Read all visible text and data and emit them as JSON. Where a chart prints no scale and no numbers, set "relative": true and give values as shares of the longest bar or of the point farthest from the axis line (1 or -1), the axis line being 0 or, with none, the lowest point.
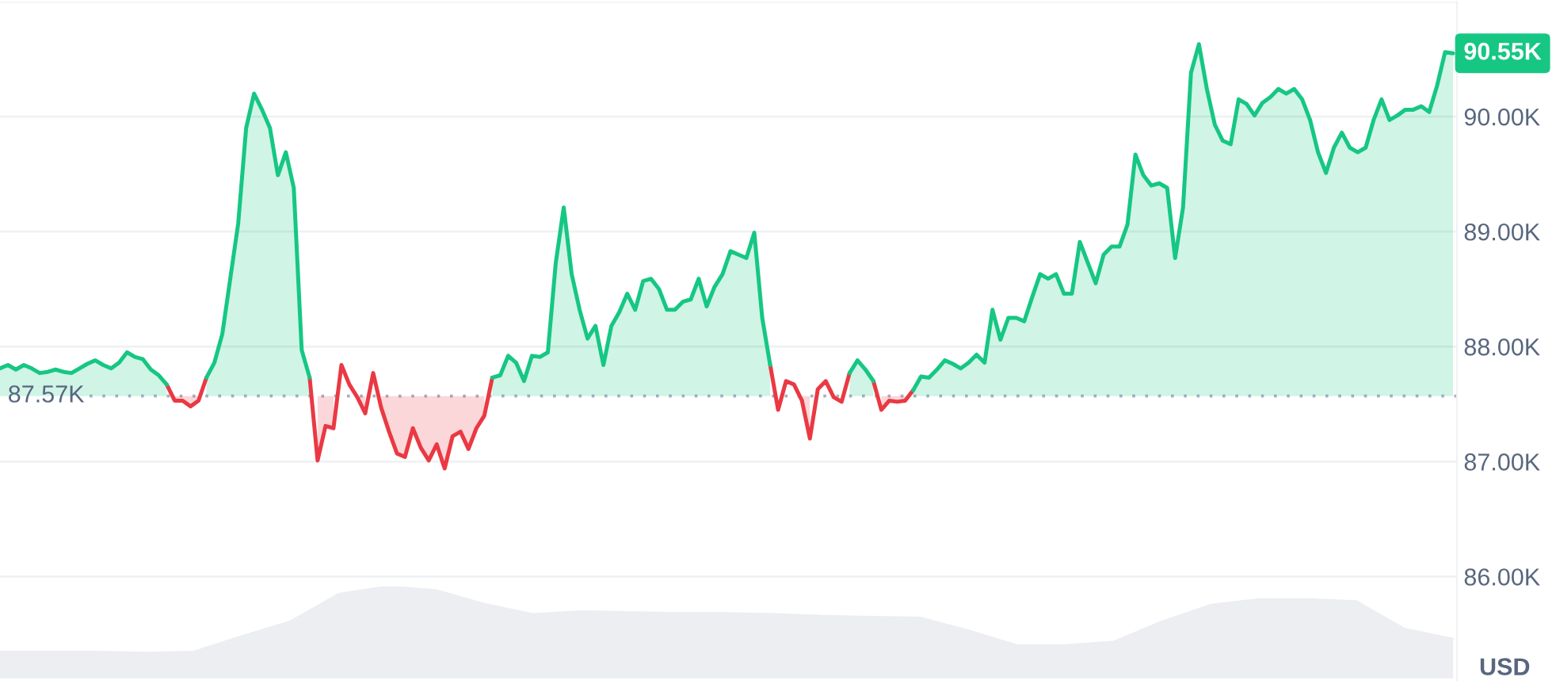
{
  "chart_data": [
    {
      "type": "area",
      "ylabel": "USD",
      "categories": [
        null,
        null,
        null,
        null,
        null,
        null,
        null,
        null,
        null,
        null,
        null,
        null,
        null,
        null,
        null,
        null,
        null,
        null,
        null,
        null,
        null,
        null,
        null,
        null,
        null,
        null,
        null,
        null,
        null,
        null,
        null,
        null,
        null,
        null,
        null,
        null,
        null,
        null,
        null,
        null,
        null,
        null,
        null,
        null,
        null,
        null,
        null,
        null,
        null,
        null,
        null,
        null,
        null,
        null,
        null,
        null,
        null,
        null,
        null,
        null,
        null,
        null,
        null,
        null,
        null,
        null,
        null,
        null,
        null,
        null,
        null,
        null,
        null,
        null,
        null,
        null,
        null,
        null,
        null,
        null,
        null,
        null,
        null,
        null,
        null,
        null,
        null,
        null,
        null,
        null,
        null,
        null,
        null,
        null,
        null,
        null,
        null,
        null,
        null,
        null,
        null,
        null,
        null,
        null,
        null,
        null,
        null,
        null,
        null,
        null,
        null,
        null,
        null,
        null,
        null,
        null,
        null,
        null,
        null,
        null,
        null,
        null,
        null,
        null,
        null,
        null,
        null,
        null,
        null,
        null,
        null,
        null,
        null,
        null,
        null,
        null,
        null,
        null,
        null,
        null,
        null,
        null,
        null,
        null,
        null,
        null,
        null,
        null,
        null,
        null,
        null,
        null,
        null,
        null,
        null,
        null,
        null,
        null,
        null,
        null,
        null,
        null,
        null,
        null,
        null,
        null,
        null,
        null,
        null,
        null,
        null,
        null,
        null,
        null,
        null,
        null,
        null,
        null,
        null,
        null,
        null,
        null,
        null,
        null
      ],
      "series": [
        {
          "color": "#16c784",
          "values": [
            87.81,
            87.84,
            87.8,
            87.84,
            87.81,
            87.77,
            87.78,
            87.8,
            87.78,
            87.77,
            87.81,
            87.85,
            87.88,
            87.84,
            87.81,
            87.86,
            87.95,
            87.91,
            87.89,
            87.8,
            87.75,
            87.67,
            null,
            null,
            null,
            null,
            87.73,
            87.86,
            88.11,
            88.59,
            89.07,
            89.9,
            90.2,
            90.06,
            89.9,
            89.49,
            89.69,
            89.38,
            87.97,
            87.73,
            null,
            null,
            null,
            null,
            null,
            null,
            null,
            null,
            null,
            null,
            null,
            null,
            null,
            null,
            null,
            null,
            null,
            null,
            null,
            null,
            null,
            null,
            87.73,
            87.75,
            87.92,
            87.86,
            87.7,
            87.92,
            87.91,
            87.95,
            88.73,
            89.21,
            88.63,
            88.32,
            88.07,
            88.18,
            87.84,
            88.18,
            88.3,
            88.46,
            88.32,
            88.57,
            88.59,
            88.5,
            88.32,
            88.32,
            88.39,
            88.41,
            88.59,
            88.35,
            88.52,
            88.63,
            88.83,
            88.8,
            88.77,
            88.99,
            88.25,
            87.84,
            null,
            null,
            null,
            null,
            null,
            null,
            null,
            null,
            null,
            87.77,
            87.88,
            87.8,
            87.7,
            null,
            null,
            null,
            null,
            87.62,
            87.74,
            87.73,
            87.8,
            87.88,
            87.85,
            87.81,
            87.86,
            87.93,
            87.86,
            88.32,
            88.06,
            88.25,
            88.25,
            88.22,
            88.43,
            88.63,
            88.59,
            88.63,
            88.46,
            88.46,
            88.91,
            88.73,
            88.55,
            88.8,
            88.87,
            88.87,
            89.06,
            89.67,
            89.49,
            89.4,
            89.42,
            89.38,
            88.77,
            89.21,
            90.38,
            90.63,
            90.24,
            89.93,
            89.79,
            89.76,
            90.15,
            90.11,
            90.01,
            90.12,
            90.17,
            90.24,
            90.2,
            90.24,
            90.15,
            89.97,
            89.69,
            89.51,
            89.73,
            89.86,
            89.73,
            89.69,
            89.73,
            89.97,
            90.15,
            89.97,
            90.01,
            90.06,
            90.06,
            90.09,
            90.04,
            90.27,
            90.56,
            90.55
          ]
        },
        {
          "type": "line",
          "color": "#ea3943",
          "values": [
            null,
            null,
            null,
            null,
            null,
            null,
            null,
            null,
            null,
            null,
            null,
            null,
            null,
            null,
            null,
            null,
            null,
            null,
            null,
            null,
            null,
            87.67,
            87.53,
            87.53,
            87.48,
            87.53,
            87.73,
            null,
            null,
            null,
            null,
            null,
            null,
            null,
            null,
            null,
            null,
            null,
            null,
            87.73,
            87.01,
            87.31,
            87.29,
            87.84,
            87.67,
            87.56,
            87.42,
            87.77,
            87.47,
            87.26,
            87.07,
            87.04,
            87.29,
            87.12,
            87.01,
            87.15,
            86.94,
            87.22,
            87.26,
            87.11,
            87.29,
            87.4,
            87.73,
            null,
            null,
            null,
            null,
            null,
            null,
            null,
            null,
            null,
            null,
            null,
            null,
            null,
            null,
            null,
            null,
            null,
            null,
            null,
            null,
            null,
            null,
            null,
            null,
            null,
            null,
            null,
            null,
            null,
            null,
            null,
            null,
            null,
            null,
            87.84,
            87.45,
            87.7,
            87.67,
            87.53,
            87.2,
            87.63,
            87.7,
            87.56,
            87.52,
            87.77,
            null,
            null,
            87.7,
            87.45,
            87.53,
            87.52,
            87.53,
            87.62,
            null,
            null,
            null,
            null,
            null,
            null,
            null,
            null,
            null,
            null,
            null,
            null,
            null,
            null,
            null,
            null,
            null,
            null,
            null,
            null,
            null,
            null,
            null,
            null,
            null,
            null,
            null,
            null,
            null,
            null,
            null,
            null,
            null,
            null,
            null,
            null,
            null,
            null,
            null,
            null,
            null,
            null,
            null,
            null,
            null,
            null,
            null,
            null,
            null,
            null,
            null,
            null,
            null,
            null,
            null,
            null,
            null,
            null,
            null,
            null,
            null,
            null,
            null,
            null,
            null,
            null,
            null,
            null
          ],
          "lower": [
            null,
            null,
            null,
            null,
            null,
            null,
            null,
            null,
            null,
            null,
            null,
            null,
            null,
            null,
            null,
            null,
            null,
            null,
            null,
            null,
            null,
            null,
            87.53,
            87.53,
            87.48,
            87.53,
            null,
            null,
            null,
            null,
            null,
            null,
            null,
            null,
            null,
            null,
            null,
            null,
            null,
            null,
            87.01,
            87.31,
            87.29,
            null,
            null,
            87.56,
            87.42,
            null,
            87.47,
            87.26,
            87.07,
            87.04,
            87.29,
            87.12,
            87.01,
            87.15,
            86.94,
            87.22,
            87.26,
            87.11,
            87.29,
            87.4,
            null,
            null,
            null,
            null,
            null,
            null,
            null,
            null,
            null,
            null,
            null,
            null,
            null,
            null,
            null,
            null,
            null,
            null,
            null,
            null,
            null,
            null,
            null,
            null,
            null,
            null,
            null,
            null,
            null,
            null,
            null,
            null,
            null,
            null,
            null,
            null,
            null,
            null,
            null,
            87.53,
            87.2,
            null,
            null,
            null,
            null,
            null,
            null,
            null,
            null,
            87.45,
            87.53,
            87.52,
            87.53,
            null,
            null,
            null,
            null,
            null,
            null,
            null,
            null,
            null,
            null,
            null,
            null,
            null,
            null,
            null,
            null,
            null,
            null,
            null,
            null,
            null,
            null,
            null,
            null,
            null,
            null,
            null,
            null,
            null,
            null,
            null,
            null,
            null,
            null,
            null,
            null,
            null,
            null,
            null,
            null,
            null,
            null,
            null,
            null,
            null,
            null,
            null,
            null,
            null,
            null,
            null,
            null,
            null,
            null,
            null,
            null,
            null,
            null,
            null,
            null,
            null,
            null,
            null,
            null,
            null,
            null,
            null,
            null,
            null
          ],
          "upper": [
            null,
            null,
            null,
            null,
            null,
            null,
            null,
            null,
            null,
            null,
            null,
            null,
            null,
            null,
            null,
            null,
            null,
            null,
            null,
            null,
            null,
            null,
            87.57,
            87.57,
            87.57,
            87.57,
            null,
            null,
            null,
            null,
            null,
            null,
            null,
            null,
            null,
            null,
            null,
            null,
            null,
            null,
            87.57,
            87.57,
            87.57,
            null,
            null,
            87.57,
            87.57,
            null,
            87.57,
            87.57,
            87.57,
            87.57,
            87.57,
            87.57,
            87.57,
            87.57,
            87.57,
            87.57,
            87.57,
            87.57,
            87.57,
            87.57,
            null,
            null,
            null,
            null,
            null,
            null,
            null,
            null,
            null,
            null,
            null,
            null,
            null,
            null,
            null,
            null,
            null,
            null,
            null,
            null,
            null,
            null,
            null,
            null,
            null,
            null,
            null,
            null,
            null,
            null,
            null,
            null,
            null,
            null,
            null,
            null,
            null,
            null,
            null,
            87.57,
            87.57,
            null,
            null,
            null,
            null,
            null,
            null,
            null,
            null,
            87.57,
            87.57,
            87.57,
            87.57,
            null,
            null,
            null,
            null,
            null,
            null,
            null,
            null,
            null,
            null,
            null,
            null,
            null,
            null,
            null,
            null,
            null,
            null,
            null,
            null,
            null,
            null,
            null,
            null,
            null,
            null,
            null,
            null,
            null,
            null,
            null,
            null,
            null,
            null,
            null,
            null,
            null,
            null,
            null,
            null,
            null,
            null,
            null,
            null,
            null,
            null,
            null,
            null,
            null,
            null,
            null,
            null,
            null,
            null,
            null,
            null,
            null,
            null,
            null,
            null,
            null,
            null,
            null,
            null,
            null,
            null,
            null,
            null,
            null
          ]
        }
      ],
      "ylim": [
        85.1,
        91
      ],
      "yticks": [
        {
          "value": 86,
          "label": "86.00K"
        },
        {
          "value": 87,
          "label": "87.00K"
        },
        {
          "value": 88,
          "label": "88.00K"
        },
        {
          "value": 89,
          "label": "89.00K"
        },
        {
          "value": 90,
          "label": "90.00K"
        },
        {
          "value": 91,
          "label": null
        }
      ],
      "grid": "y",
      "tick_labels": "y",
      "ref_lines": [
        {
          "axis": "y",
          "value": 87.57,
          "label": "87.57K",
          "color": "#a6b0c3",
          "line_style": "dotted"
        }
      ],
      "annotations": [
        "90.55K"
      ]
    },
    {
      "type": "area",
      "relative": true,
      "tick_labels": false,
      "categories": [
        null,
        null,
        null,
        null,
        null,
        null,
        null,
        null,
        null,
        null,
        null,
        null,
        null,
        null,
        null,
        null,
        null,
        null,
        null,
        null,
        null,
        null,
        null,
        null,
        null,
        null,
        null,
        null,
        null,
        null,
        null
      ],
      "series": [
        {
          "color": "#eceef2",
          "values": [
            0.29,
            0.29,
            0.29,
            0.28,
            0.29,
            0.46,
            0.62,
            0.92,
            1,
            0.96,
            0.81,
            0.7,
            0.73,
            0.72,
            0.71,
            0.71,
            0.7,
            0.68,
            0.67,
            0.66,
            0.52,
            0.36,
            0.36,
            0.4,
            0.62,
            0.8,
            0.86,
            0.86,
            0.84,
            0.54,
            0.43
          ]
        }
      ]
    }
  ]
}
